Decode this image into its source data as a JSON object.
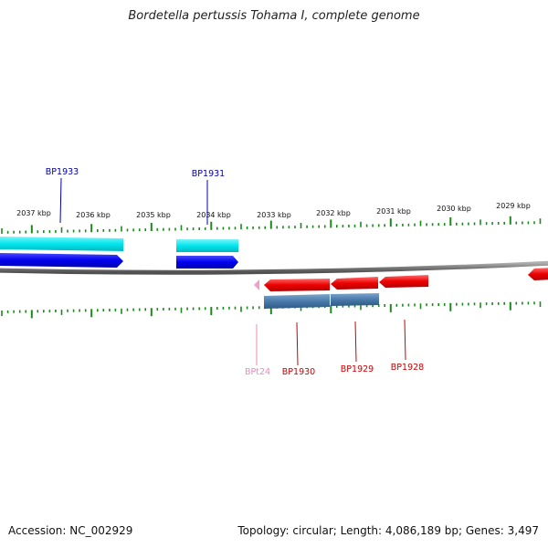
{
  "title": "Bordetella pertussis Tohama I, complete genome",
  "footer": {
    "accession": "Accession: NC_002929",
    "summary": "Topology: circular; Length: 4,086,189 bp; Genes: 3,497"
  },
  "kbp_labels": [
    "2037 kbp",
    "2036 kbp",
    "2035 kbp",
    "2034 kbp",
    "2033 kbp",
    "2032 kbp",
    "2031 kbp",
    "2030 kbp",
    "2029 kbp"
  ],
  "genes": [
    {
      "name": "BP1933",
      "color": "#0000aa"
    },
    {
      "name": "BP1931",
      "color": "#0000aa"
    },
    {
      "name": "BPt24",
      "color": "#ee88bb"
    },
    {
      "name": "BP1930",
      "color": "#cc0000"
    },
    {
      "name": "BP1929",
      "color": "#cc0000"
    },
    {
      "name": "BP1928",
      "color": "#cc0000"
    }
  ],
  "colors": {
    "backbone": "#7a7a7a",
    "ticks": "#1a8a1a",
    "cds_forward": "#0000ee",
    "feature_forward": "#00e6ee",
    "cds_reverse": "#ee0000",
    "feature_reverse": "#4a7aaa",
    "trna": "#f0a0c8"
  }
}
